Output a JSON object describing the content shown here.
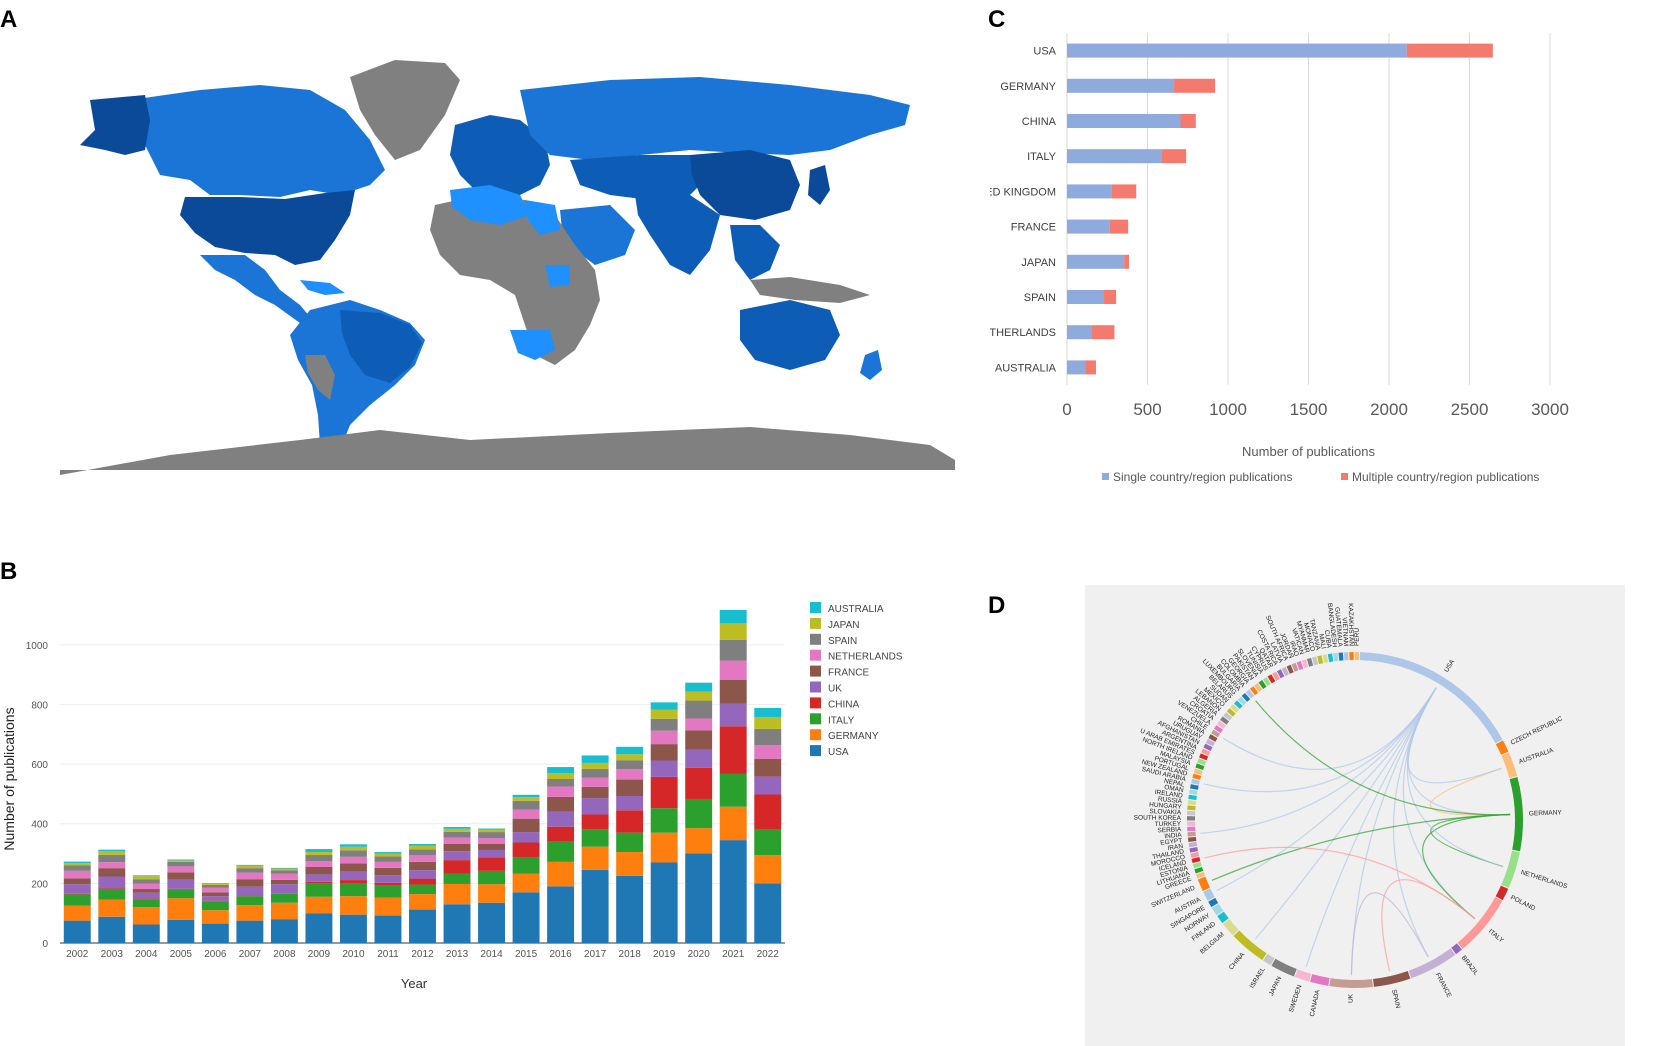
{
  "panels": {
    "a": "A",
    "b": "B",
    "c": "C",
    "d": "D"
  },
  "colors": {
    "ocean": "#ffffff",
    "no_data": "#808080",
    "low": "#1e90ff",
    "mid": "#1a75d6",
    "high": "#0d5cb6",
    "top": "#0a4a99",
    "single": "#8faadc",
    "multiple": "#f47a6e"
  },
  "chart_data": [
    {
      "type": "map",
      "panel": "A",
      "note_colors": "choropleth of publications by country; darker blue = more publications; grey = no publications"
    },
    {
      "type": "bar",
      "panel": "B",
      "stacked": true,
      "xlabel": "Year",
      "ylabel": "Number of publications",
      "ylim": [
        0,
        1100
      ],
      "yticks": [
        0,
        200,
        400,
        600,
        800,
        1000
      ],
      "grid": true,
      "legend_position": "right",
      "categories": [
        "2002",
        "2003",
        "2004",
        "2005",
        "2006",
        "2007",
        "2008",
        "2009",
        "2010",
        "2011",
        "2012",
        "2013",
        "2014",
        "2015",
        "2016",
        "2017",
        "2018",
        "2019",
        "2020",
        "2021",
        "2022"
      ],
      "series": [
        {
          "name": "USA",
          "color": "#1f77b4",
          "values": [
            75,
            88,
            62,
            78,
            65,
            75,
            80,
            100,
            95,
            92,
            112,
            130,
            135,
            170,
            190,
            245,
            225,
            270,
            300,
            345,
            200
          ]
        },
        {
          "name": "GERMANY",
          "color": "#ff7f0e",
          "values": [
            50,
            58,
            58,
            72,
            45,
            52,
            55,
            55,
            62,
            60,
            52,
            68,
            62,
            62,
            82,
            78,
            80,
            100,
            85,
            112,
            95
          ]
        },
        {
          "name": "ITALY",
          "color": "#2ca02c",
          "values": [
            38,
            35,
            27,
            30,
            30,
            30,
            30,
            45,
            42,
            40,
            32,
            35,
            45,
            55,
            68,
            58,
            65,
            82,
            98,
            110,
            85
          ]
        },
        {
          "name": "CHINA",
          "color": "#d62728",
          "values": [
            2,
            2,
            2,
            2,
            2,
            2,
            2,
            5,
            12,
            10,
            20,
            45,
            45,
            50,
            50,
            50,
            75,
            105,
            105,
            160,
            118
          ]
        },
        {
          "name": "UK",
          "color": "#9467bd",
          "values": [
            32,
            40,
            20,
            30,
            15,
            30,
            30,
            25,
            28,
            25,
            28,
            30,
            25,
            35,
            50,
            55,
            48,
            55,
            60,
            75,
            60
          ]
        },
        {
          "name": "FRANCE",
          "color": "#8c564b",
          "values": [
            20,
            28,
            12,
            25,
            13,
            25,
            15,
            25,
            28,
            25,
            28,
            25,
            20,
            45,
            50,
            38,
            55,
            55,
            65,
            80,
            60
          ]
        },
        {
          "name": "NETHERLANDS",
          "color": "#e377c2",
          "values": [
            25,
            20,
            18,
            20,
            15,
            22,
            20,
            20,
            22,
            20,
            22,
            20,
            20,
            30,
            35,
            30,
            35,
            45,
            40,
            65,
            45
          ]
        },
        {
          "name": "SPAIN",
          "color": "#7f7f7f",
          "values": [
            18,
            25,
            15,
            15,
            10,
            15,
            12,
            20,
            22,
            18,
            20,
            20,
            20,
            30,
            25,
            30,
            30,
            40,
            60,
            70,
            55
          ]
        },
        {
          "name": "JAPAN",
          "color": "#bcbd22",
          "values": [
            8,
            12,
            10,
            5,
            4,
            8,
            6,
            10,
            12,
            10,
            12,
            10,
            8,
            12,
            20,
            20,
            20,
            30,
            30,
            55,
            40
          ]
        },
        {
          "name": "AUSTRALIA",
          "color": "#17becf",
          "values": [
            5,
            5,
            3,
            3,
            2,
            3,
            2,
            10,
            8,
            5,
            6,
            6,
            4,
            8,
            20,
            25,
            25,
            25,
            30,
            45,
            30
          ]
        }
      ]
    },
    {
      "type": "bar",
      "panel": "C",
      "orientation": "horizontal",
      "stacked": true,
      "xlabel": "Number of publications",
      "xlim": [
        0,
        3000
      ],
      "xticks": [
        0,
        500,
        1000,
        1500,
        2000,
        2500,
        3000
      ],
      "grid": true,
      "legend_position": "bottom",
      "categories": [
        "USA",
        "GERMANY",
        "CHINA",
        "ITALY",
        "UNITED KINGDOM",
        "FRANCE",
        "JAPAN",
        "SPAIN",
        "NETHERLANDS",
        "AUSTRALIA"
      ],
      "series": [
        {
          "name": "Single country/region publications",
          "color": "#8faadc",
          "values": [
            2110,
            665,
            705,
            585,
            275,
            265,
            355,
            230,
            150,
            115
          ]
        },
        {
          "name": "Multiple country/region publications",
          "color": "#f47a6e",
          "values": [
            535,
            255,
            95,
            155,
            155,
            115,
            30,
            75,
            145,
            65
          ]
        }
      ]
    },
    {
      "type": "chord",
      "panel": "D",
      "labels": [
        "USA",
        "CZECH REPUBLIC",
        "AUSTRALIA",
        "GERMANY",
        "NETHERLANDS",
        "POLAND",
        "ITALY",
        "BRAZIL",
        "FRANCE",
        "SPAIN",
        "UK",
        "CANADA",
        "SWEDEN",
        "JAPAN",
        "ISRAEL",
        "CHINA",
        "BELGIUM",
        "FINLAND",
        "NORWAY",
        "SINGAPORE",
        "AUSTRIA",
        "SWITZERLAND",
        "GREECE",
        "LITHUANIA",
        "ESTONIA",
        "ICELAND",
        "MOROCCO",
        "THAILAND",
        "IRAN",
        "EGYPT",
        "INDIA",
        "SERBIA",
        "TURKEY",
        "SOUTH KOREA",
        "SLOVAKIA",
        "HUNGARY",
        "RUSSIA",
        "IRELAND",
        "OMAN",
        "NEPAL",
        "SAUDI ARABIA",
        "NEW ZEALAND",
        "PORTUGAL",
        "MALAYSIA",
        "NORTH IRELAND",
        "U ARAB EMIRATES",
        "ARGENTINA",
        "AFGHANISTAN",
        "URUGUAY",
        "ROMANIA",
        "CHILE",
        "VENEZUELA",
        "CROATIA",
        "ALGERIA",
        "LEBANON",
        "MEXICO",
        "SUDAN",
        "BELARUS",
        "LUXEMBOURG",
        "BULGARIA",
        "COLOMBIA",
        "GEORGIA",
        "PAKISTAN",
        "SLOVENIA",
        "TUNISIA",
        "CYPRUS",
        "QATAR",
        "COSTA RICA",
        "LATVIA",
        "SOUTH AFRICA",
        "JORDAN",
        "IRAQ",
        "VATICAN",
        "MYANMAR",
        "MONACO",
        "TANZANIA",
        "MALI",
        "CUBA",
        "BANGLADESH",
        "GUATEMALA",
        "VIETNAM",
        "KAZAKHSTAN",
        "PERU"
      ]
    }
  ]
}
